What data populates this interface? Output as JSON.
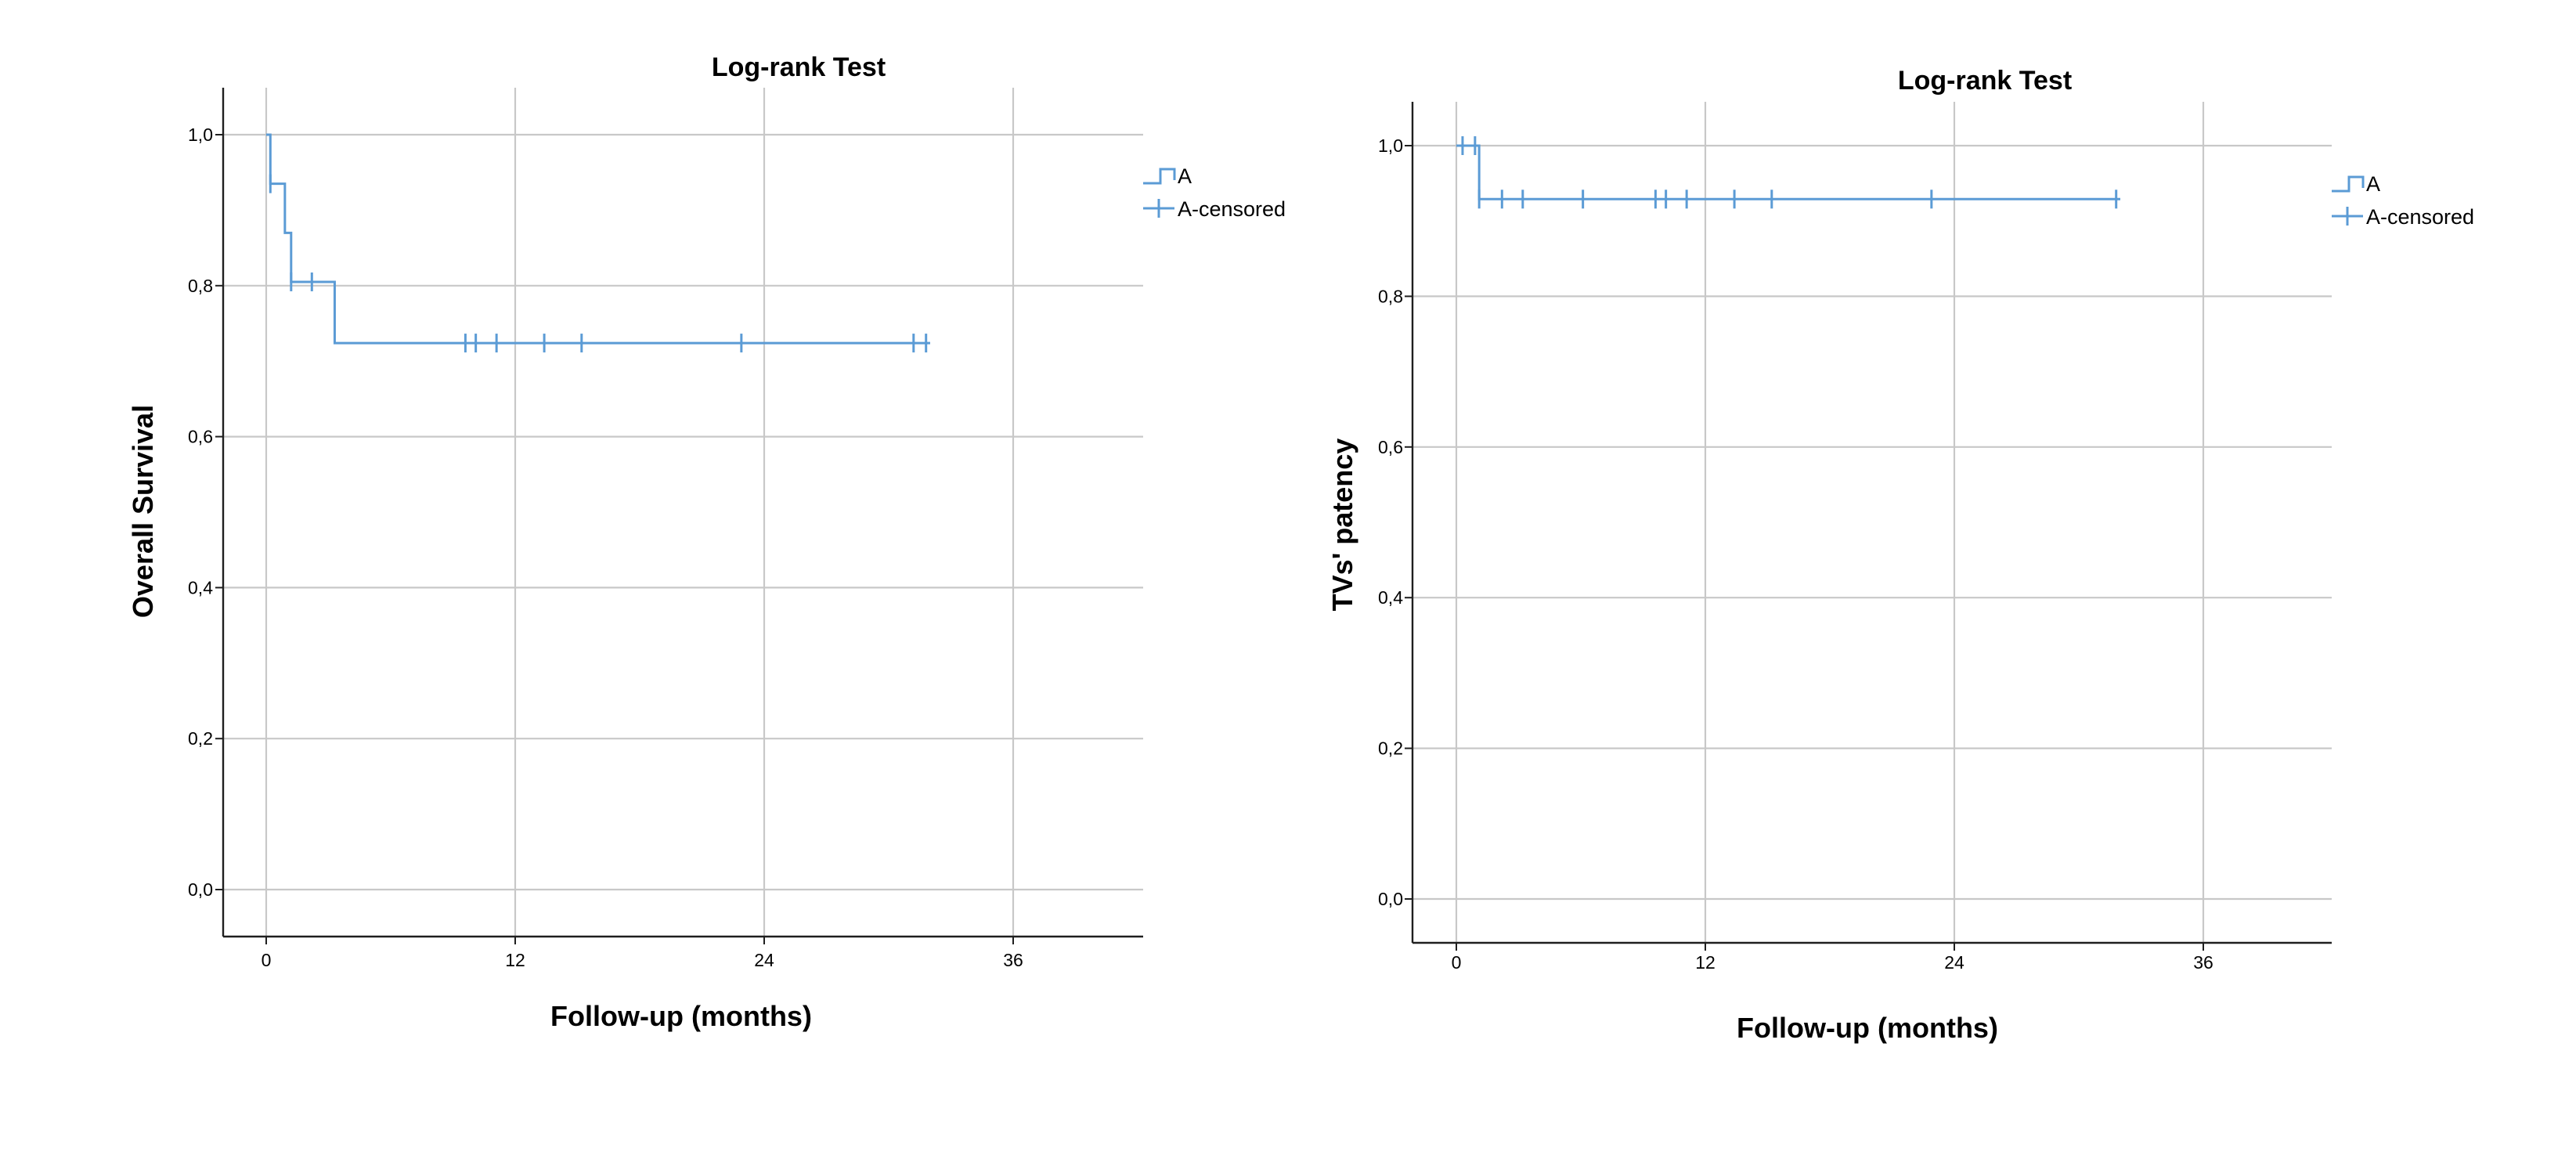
{
  "chart_data": [
    {
      "type": "line",
      "title": "Log-rank Test",
      "xlabel": "Follow-up (months)",
      "ylabel": "Overall Survival",
      "xticks": [
        0,
        12,
        24,
        36
      ],
      "xtick_labels": [
        "0",
        "12",
        "24",
        "36"
      ],
      "yticks": [
        0,
        0.2,
        0.4,
        0.6,
        0.8,
        1.0
      ],
      "ytick_labels": [
        "0,0",
        "0,2",
        "0,4",
        "0,6",
        "0,8",
        "1,0"
      ],
      "xlim": [
        -2,
        42
      ],
      "ylim": [
        -0.05,
        1.05
      ],
      "grid": true,
      "legend_position": "right",
      "legend": [
        "A",
        "A-censored"
      ],
      "line_color": "#5b9bd5",
      "series": [
        {
          "name": "A",
          "steps": [
            [
              0,
              1.0
            ],
            [
              0.2,
              0.935
            ],
            [
              0.9,
              0.87
            ],
            [
              1.2,
              0.805
            ],
            [
              3.3,
              0.724
            ],
            [
              32,
              0.724
            ]
          ],
          "censored": [
            [
              0.2,
              0.935
            ],
            [
              1.2,
              0.805
            ],
            [
              2.2,
              0.805
            ],
            [
              9.6,
              0.724
            ],
            [
              10.1,
              0.724
            ],
            [
              11.1,
              0.724
            ],
            [
              13.4,
              0.724
            ],
            [
              15.2,
              0.724
            ],
            [
              22.9,
              0.724
            ],
            [
              31.2,
              0.724
            ],
            [
              31.8,
              0.724
            ]
          ]
        }
      ]
    },
    {
      "type": "line",
      "title": "Log-rank Test",
      "xlabel": "Follow-up (months)",
      "ylabel": "TVs' patency",
      "xticks": [
        0,
        12,
        24,
        36
      ],
      "xtick_labels": [
        "0",
        "12",
        "24",
        "36"
      ],
      "yticks": [
        0,
        0.2,
        0.4,
        0.6,
        0.8,
        1.0
      ],
      "ytick_labels": [
        "0,0",
        "0,2",
        "0,4",
        "0,6",
        "0,8",
        "1,0"
      ],
      "xlim": [
        -2,
        42
      ],
      "ylim": [
        -0.05,
        1.05
      ],
      "grid": true,
      "legend_position": "right",
      "legend": [
        "A",
        "A-censored"
      ],
      "line_color": "#5b9bd5",
      "series": [
        {
          "name": "A",
          "steps": [
            [
              0,
              1.0
            ],
            [
              1.1,
              0.929
            ],
            [
              32,
              0.929
            ]
          ],
          "censored": [
            [
              0.3,
              1.0
            ],
            [
              0.9,
              1.0
            ],
            [
              1.1,
              0.929
            ],
            [
              2.2,
              0.929
            ],
            [
              3.2,
              0.929
            ],
            [
              6.1,
              0.929
            ],
            [
              9.6,
              0.929
            ],
            [
              10.1,
              0.929
            ],
            [
              11.1,
              0.929
            ],
            [
              13.4,
              0.929
            ],
            [
              15.2,
              0.929
            ],
            [
              22.9,
              0.929
            ],
            [
              31.8,
              0.929
            ]
          ]
        }
      ]
    }
  ]
}
